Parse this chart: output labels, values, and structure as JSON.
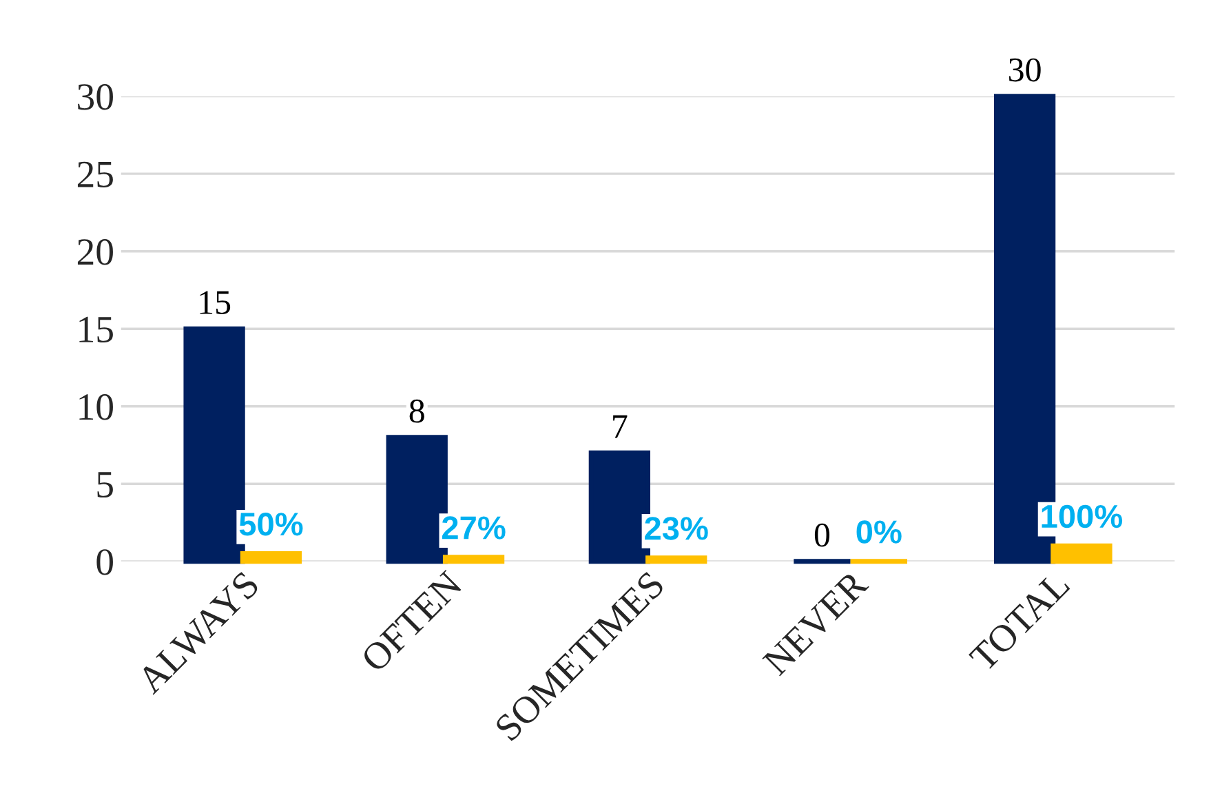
{
  "chart_data": {
    "type": "bar",
    "categories": [
      "ALWAYS",
      "OFTEN",
      "SOMETIMES",
      "NEVER",
      "TOTAL"
    ],
    "series": [
      {
        "color": "#002060",
        "values": [
          15,
          8,
          7,
          0,
          30
        ],
        "value_labels": [
          "15",
          "8",
          "7",
          "0",
          "30"
        ]
      },
      {
        "color": "#ffc000",
        "values": [
          0.5,
          0.27,
          0.23,
          0,
          1
        ],
        "value_labels": [
          "50%",
          "27%",
          "23%",
          "0%",
          "100%"
        ]
      }
    ],
    "ylim": [
      0,
      30
    ],
    "yticks": [
      0,
      5,
      10,
      15,
      20,
      25,
      30
    ],
    "grid": "y",
    "legend": false
  }
}
